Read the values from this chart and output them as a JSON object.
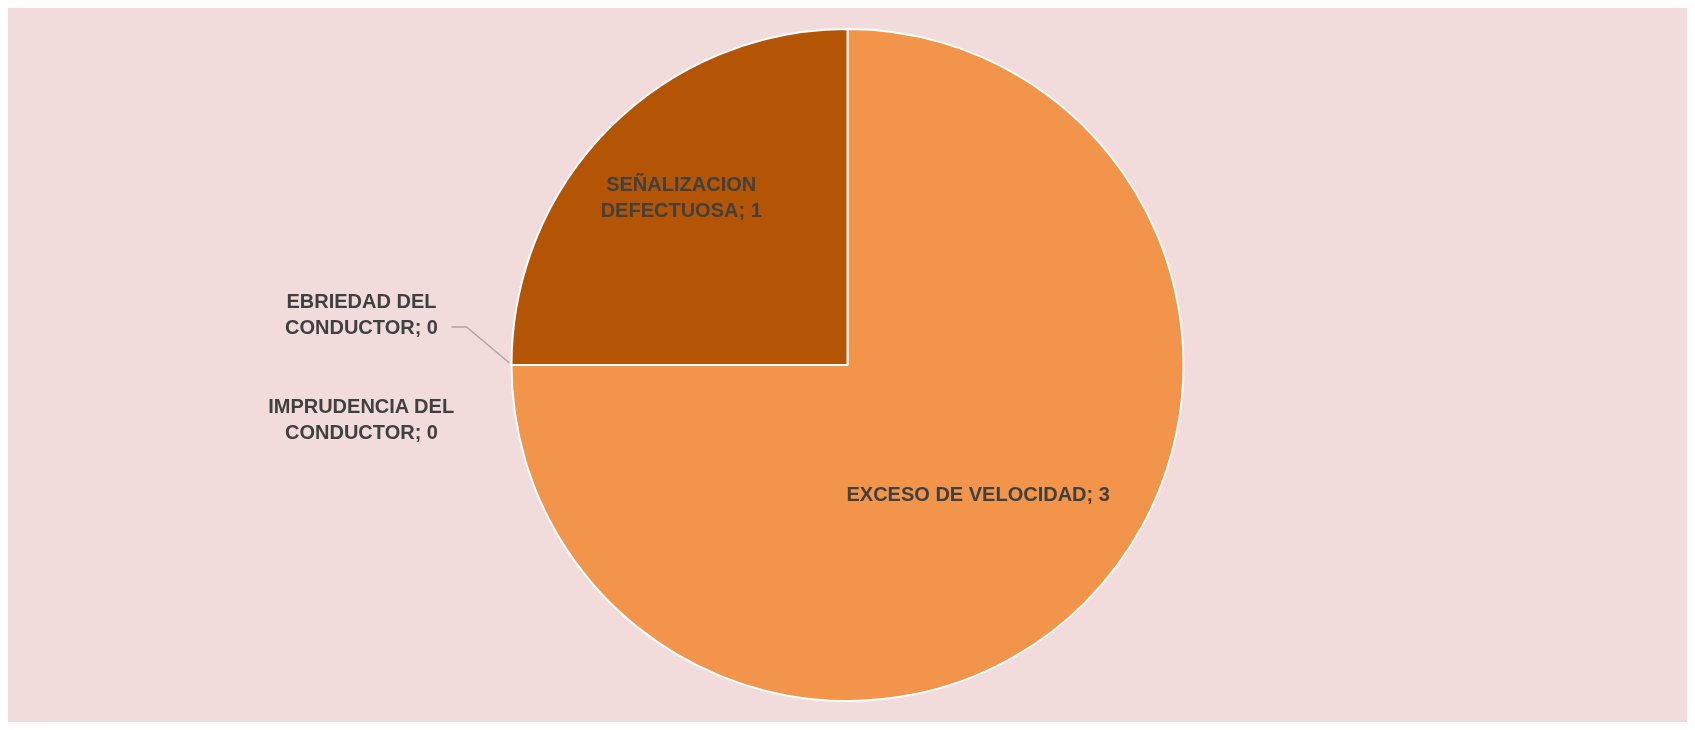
{
  "chart_data": {
    "type": "pie",
    "categories": [
      "EXCESO DE VELOCIDAD",
      "IMPRUDENCIA DEL CONDUCTOR",
      "EBRIEDAD DEL CONDUCTOR",
      "SEÑALIZACION DEFECTUOSA"
    ],
    "values": [
      3,
      0,
      0,
      1
    ],
    "colors": [
      "#f2954a",
      "#d9722a",
      "#c0611a",
      "#b35505"
    ],
    "value_labels": [
      "; 3",
      "; 0",
      "; 0",
      "; 1"
    ],
    "legend": false
  }
}
